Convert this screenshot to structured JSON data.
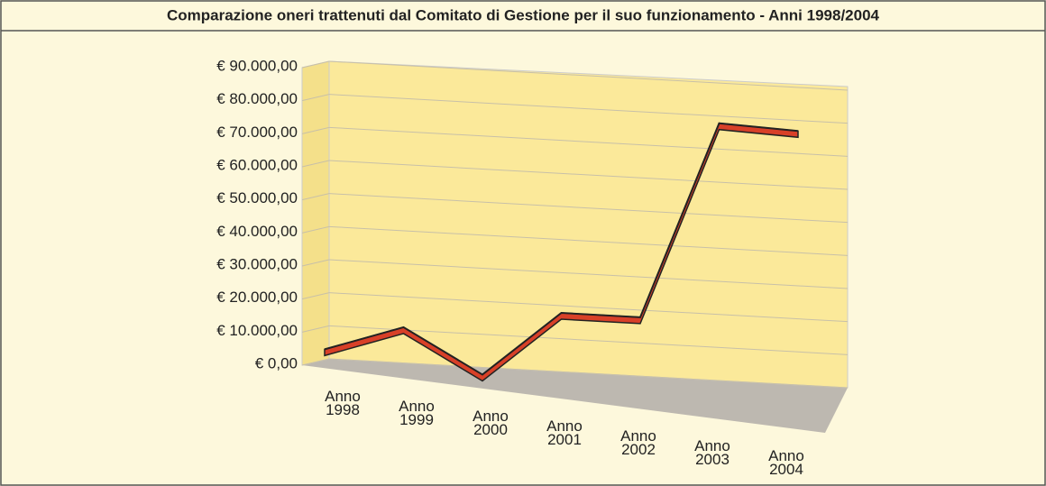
{
  "chart_data": {
    "type": "line3d",
    "title": "Comparazione oneri trattenuti dal Comitato di Gestione per il suo funzionamento - Anni 1998/2004",
    "categories": [
      "Anno 1998",
      "Anno 1999",
      "Anno 2000",
      "Anno 2001",
      "Anno 2002",
      "Anno 2003",
      "Anno 2004"
    ],
    "values": [
      5000,
      13000,
      0,
      20000,
      20000,
      80000,
      79000
    ],
    "color": "#d84028",
    "ylim": [
      0,
      90000
    ],
    "yticks": [
      {
        "value": 0,
        "label": "€ 0,00"
      },
      {
        "value": 10000,
        "label": "€ 10.000,00"
      },
      {
        "value": 20000,
        "label": "€ 20.000,00"
      },
      {
        "value": 30000,
        "label": "€ 30.000,00"
      },
      {
        "value": 40000,
        "label": "€ 40.000,00"
      },
      {
        "value": 50000,
        "label": "€ 50.000,00"
      },
      {
        "value": 60000,
        "label": "€ 60.000,00"
      },
      {
        "value": 70000,
        "label": "€ 70.000,00"
      },
      {
        "value": 80000,
        "label": "€ 80.000,00"
      },
      {
        "value": 90000,
        "label": "€ 90.000,00"
      }
    ],
    "grid": true
  }
}
